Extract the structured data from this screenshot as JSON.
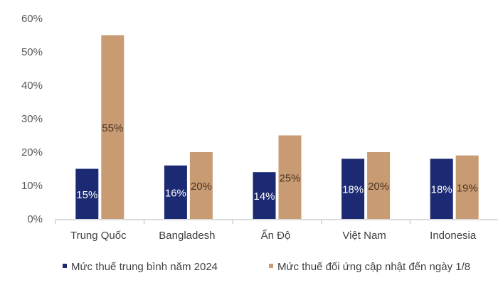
{
  "chart_data": {
    "type": "bar",
    "categories": [
      "Trung Quốc",
      "Bangladesh",
      "Ấn Độ",
      "Việt Nam",
      "Indonesia"
    ],
    "series": [
      {
        "name": "Mức thuế trung bình năm 2024",
        "values": [
          15,
          16,
          14,
          18,
          18
        ],
        "labels": [
          "15%",
          "16%",
          "14%",
          "18%",
          "18%"
        ],
        "color": "#1b2a72",
        "label_color": "#ffffff"
      },
      {
        "name": "Mức thuế đối ứng cập nhật đến ngày 1/8",
        "values": [
          55,
          20,
          25,
          20,
          19
        ],
        "labels": [
          "55%",
          "20%",
          "25%",
          "20%",
          "19%"
        ],
        "color": "#c99b72",
        "label_color": "#4a3424"
      }
    ],
    "ylim": [
      0,
      60
    ],
    "yticks": [
      "0%",
      "10%",
      "20%",
      "30%",
      "40%",
      "50%",
      "60%"
    ],
    "grid": false,
    "legend": "bottom",
    "title": "",
    "xlabel": "",
    "ylabel": ""
  }
}
